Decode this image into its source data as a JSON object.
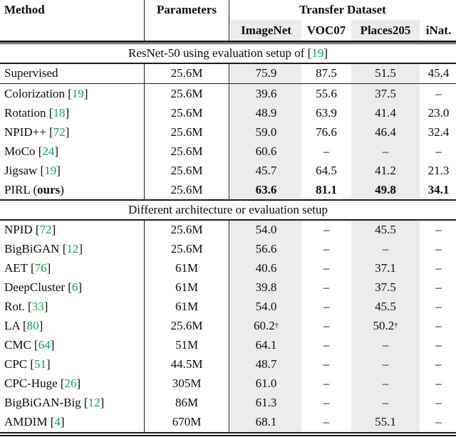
{
  "colors": {
    "citation_green": "#13a457",
    "row_shade": "#ececec",
    "rule_color": "#1c1c1c"
  },
  "table": {
    "header": {
      "method": "Method",
      "parameters": "Parameters",
      "transfer_dataset": "Transfer Dataset",
      "datasets": [
        "ImageNet",
        "VOC07",
        "Places205",
        "iNat."
      ]
    },
    "sections": [
      {
        "title_parts": [
          {
            "t": "ResNet-50 using evaluation setup of ["
          },
          {
            "t": "19",
            "cite": true
          },
          {
            "t": "]"
          }
        ],
        "rows": [
          {
            "method_parts": [
              {
                "t": "Supervised"
              }
            ],
            "params": "25.6M",
            "values": [
              "75.9",
              "87.5",
              "51.5",
              "45.4"
            ],
            "rule_after": true
          },
          {
            "method_parts": [
              {
                "t": "Colorization ["
              },
              {
                "t": "19",
                "cite": true
              },
              {
                "t": "]"
              }
            ],
            "params": "25.6M",
            "values": [
              "39.6",
              "55.6",
              "37.5",
              "–"
            ]
          },
          {
            "method_parts": [
              {
                "t": "Rotation ["
              },
              {
                "t": "18",
                "cite": true
              },
              {
                "t": "]"
              }
            ],
            "params": "25.6M",
            "values": [
              "48.9",
              "63.9",
              "41.4",
              "23.0"
            ]
          },
          {
            "method_parts": [
              {
                "t": "NPID++ ["
              },
              {
                "t": "72",
                "cite": true
              },
              {
                "t": "]"
              }
            ],
            "params": "25.6M",
            "values": [
              "59.0",
              "76.6",
              "46.4",
              "32.4"
            ]
          },
          {
            "method_parts": [
              {
                "t": "MoCo ["
              },
              {
                "t": "24",
                "cite": true
              },
              {
                "t": "]"
              }
            ],
            "params": "25.6M",
            "values": [
              "60.6",
              "–",
              "–",
              "–"
            ]
          },
          {
            "method_parts": [
              {
                "t": "Jigsaw ["
              },
              {
                "t": "19",
                "cite": true
              },
              {
                "t": "]"
              }
            ],
            "params": "25.6M",
            "values": [
              "45.7",
              "64.5",
              "41.2",
              "21.3"
            ]
          },
          {
            "method_parts": [
              {
                "t": "PIRL ("
              },
              {
                "t": "ours",
                "bold": true
              },
              {
                "t": ")"
              }
            ],
            "params": "25.6M",
            "values": [
              "63.6",
              "81.1",
              "49.8",
              "34.1"
            ],
            "bold": true
          }
        ]
      },
      {
        "title_parts": [
          {
            "t": "Different architecture or evaluation setup"
          }
        ],
        "rows": [
          {
            "method_parts": [
              {
                "t": "NPID ["
              },
              {
                "t": "72",
                "cite": true
              },
              {
                "t": "]"
              }
            ],
            "params": "25.6M",
            "values": [
              "54.0",
              "–",
              "45.5",
              "–"
            ]
          },
          {
            "method_parts": [
              {
                "t": "BigBiGAN ["
              },
              {
                "t": "12",
                "cite": true
              },
              {
                "t": "]"
              }
            ],
            "params": "25.6M",
            "values": [
              "56.6",
              "–",
              "–",
              "–"
            ]
          },
          {
            "method_parts": [
              {
                "t": "AET ["
              },
              {
                "t": "76",
                "cite": true
              },
              {
                "t": "]"
              }
            ],
            "params": "61M",
            "values": [
              "40.6",
              "–",
              "37.1",
              "–"
            ]
          },
          {
            "method_parts": [
              {
                "t": "DeepCluster ["
              },
              {
                "t": "6",
                "cite": true
              },
              {
                "t": "]"
              }
            ],
            "params": "61M",
            "values": [
              "39.8",
              "–",
              "37.5",
              "–"
            ]
          },
          {
            "method_parts": [
              {
                "t": "Rot. ["
              },
              {
                "t": "33",
                "cite": true
              },
              {
                "t": "]"
              }
            ],
            "params": "61M",
            "values": [
              "54.0",
              "–",
              "45.5",
              "–"
            ]
          },
          {
            "method_parts": [
              {
                "t": "LA ["
              },
              {
                "t": "80",
                "cite": true
              },
              {
                "t": "]"
              }
            ],
            "params": "25.6M",
            "values": [
              "60.2^†",
              "–",
              "50.2^†",
              "–"
            ]
          },
          {
            "method_parts": [
              {
                "t": "CMC ["
              },
              {
                "t": "64",
                "cite": true
              },
              {
                "t": "]"
              }
            ],
            "params": "51M",
            "values": [
              "64.1",
              "–",
              "–",
              "–"
            ]
          },
          {
            "method_parts": [
              {
                "t": "CPC ["
              },
              {
                "t": "51",
                "cite": true
              },
              {
                "t": "]"
              }
            ],
            "params": "44.5M",
            "values": [
              "48.7",
              "–",
              "–",
              "–"
            ]
          },
          {
            "method_parts": [
              {
                "t": "CPC-Huge ["
              },
              {
                "t": "26",
                "cite": true
              },
              {
                "t": "]"
              }
            ],
            "params": "305M",
            "values": [
              "61.0",
              "–",
              "–",
              "–"
            ]
          },
          {
            "method_parts": [
              {
                "t": "BigBiGAN-Big ["
              },
              {
                "t": "12",
                "cite": true
              },
              {
                "t": "]"
              }
            ],
            "params": "86M",
            "values": [
              "61.3",
              "–",
              "–",
              "–"
            ]
          },
          {
            "method_parts": [
              {
                "t": "AMDIM ["
              },
              {
                "t": "4",
                "cite": true
              },
              {
                "t": "]"
              }
            ],
            "params": "670M",
            "values": [
              "68.1",
              "–",
              "55.1",
              "–"
            ]
          }
        ]
      }
    ]
  }
}
